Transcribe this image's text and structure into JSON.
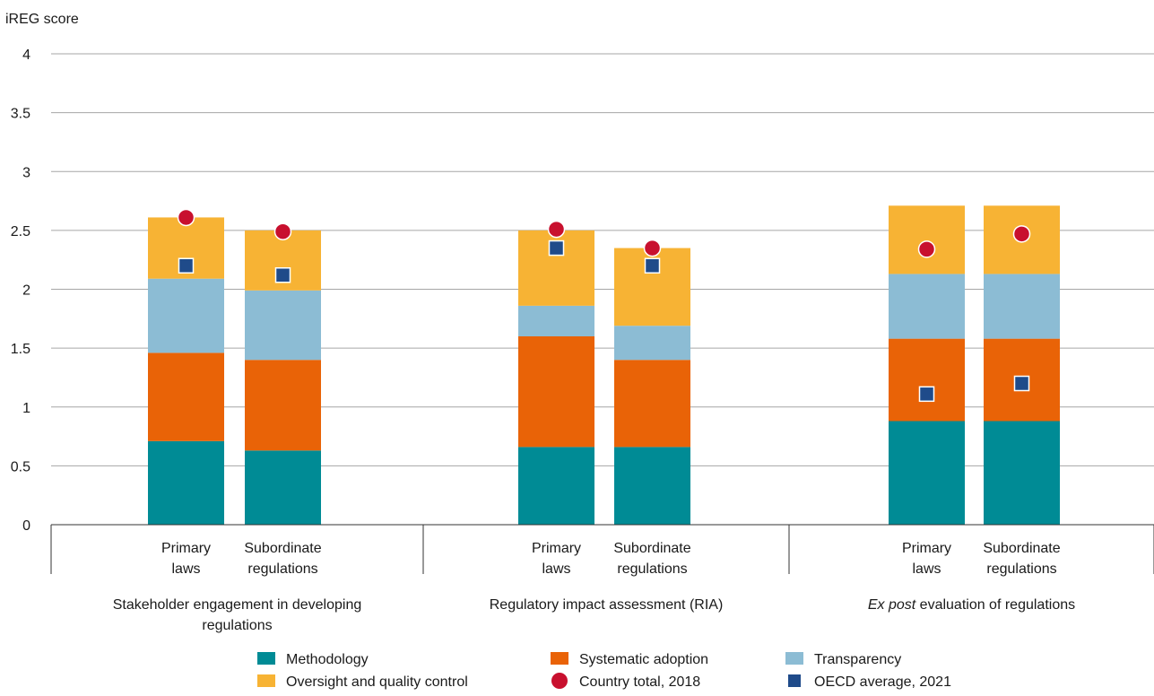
{
  "chart_data": {
    "type": "bar",
    "stacked": true,
    "ylabel": "iREG score",
    "ylim": [
      0,
      4
    ],
    "yticks": [
      0,
      0.5,
      1,
      1.5,
      2,
      2.5,
      3,
      3.5,
      4
    ],
    "ytick_labels": [
      "0",
      "0.5",
      "1",
      "1.5",
      "2",
      "2.5",
      "3",
      "3.5",
      "4"
    ],
    "grid": true,
    "legend_position": "bottom",
    "groups": [
      {
        "label_lines": [
          "Stakeholder engagement in developing",
          "regulations"
        ],
        "label_parts": [],
        "bars": [
          {
            "label_lines": [
              "Primary",
              "laws"
            ],
            "values": [
              0.71,
              0.75,
              0.63,
              0.52
            ],
            "country_total_2018": 2.61,
            "oecd_average_2021": 2.2
          },
          {
            "label_lines": [
              "Subordinate",
              "regulations"
            ],
            "values": [
              0.63,
              0.77,
              0.59,
              0.51
            ],
            "country_total_2018": 2.49,
            "oecd_average_2021": 2.12
          }
        ]
      },
      {
        "label_lines": [
          "Regulatory impact assessment (RIA)"
        ],
        "label_parts": [],
        "bars": [
          {
            "label_lines": [
              "Primary",
              "laws"
            ],
            "values": [
              0.66,
              0.94,
              0.26,
              0.64
            ],
            "country_total_2018": 2.51,
            "oecd_average_2021": 2.35
          },
          {
            "label_lines": [
              "Subordinate",
              "regulations"
            ],
            "values": [
              0.66,
              0.74,
              0.29,
              0.66
            ],
            "country_total_2018": 2.35,
            "oecd_average_2021": 2.2
          }
        ]
      },
      {
        "label_lines": [],
        "label_parts": [
          {
            "text": "Ex post",
            "italic": true
          },
          {
            "text": " evaluation of regulations",
            "italic": false
          }
        ],
        "bars": [
          {
            "label_lines": [
              "Primary",
              "laws"
            ],
            "values": [
              0.88,
              0.7,
              0.55,
              0.58
            ],
            "country_total_2018": 2.34,
            "oecd_average_2021": 1.11
          },
          {
            "label_lines": [
              "Subordinate",
              "regulations"
            ],
            "values": [
              0.88,
              0.7,
              0.55,
              0.58
            ],
            "country_total_2018": 2.47,
            "oecd_average_2021": 1.2
          }
        ]
      }
    ],
    "series": [
      {
        "name": "Methodology",
        "color": "#008b95"
      },
      {
        "name": "Systematic adoption",
        "color": "#e96307"
      },
      {
        "name": "Transparency",
        "color": "#8cbcd4"
      },
      {
        "name": "Oversight and quality control",
        "color": "#f7b334"
      }
    ],
    "markers": [
      {
        "name": "Country total, 2018",
        "shape": "circle",
        "color": "#c8102e",
        "key": "country_total_2018"
      },
      {
        "name": "OECD average, 2021",
        "shape": "square",
        "color": "#1f4b8a",
        "key": "oecd_average_2021"
      }
    ],
    "legend_order": [
      {
        "kind": "series",
        "index": 0
      },
      {
        "kind": "series",
        "index": 1
      },
      {
        "kind": "series",
        "index": 2
      },
      {
        "kind": "series",
        "index": 3
      },
      {
        "kind": "marker",
        "index": 0
      },
      {
        "kind": "marker",
        "index": 1
      }
    ]
  }
}
